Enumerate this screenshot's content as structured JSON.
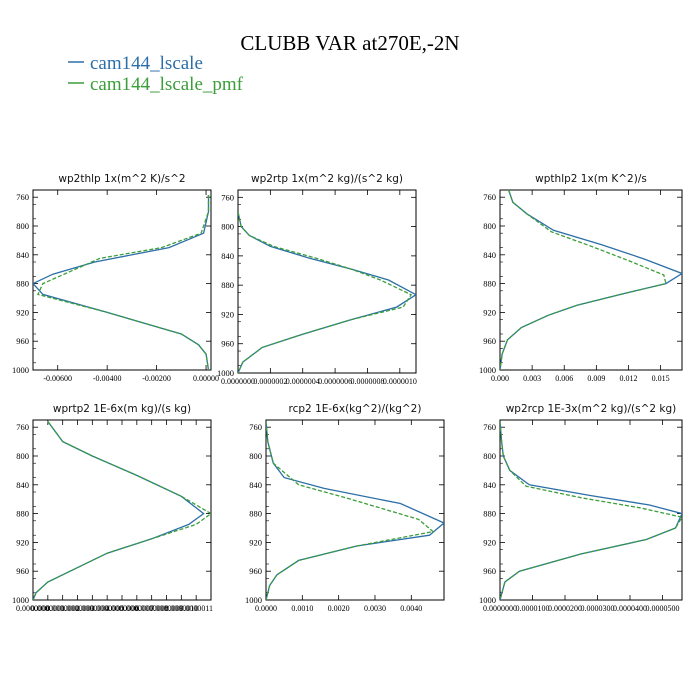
{
  "figure": {
    "title": "CLUBB VAR at270E,-2N",
    "legend": [
      {
        "name": "cam144_lscale",
        "color": "#2c6fa8"
      },
      {
        "name": "cam144_lscale_pmf",
        "color": "#3a9e3a"
      }
    ]
  },
  "chart_data": [
    {
      "type": "line",
      "title": "wp2thlp   1x(m^2 K)/s^2",
      "xlim": [
        -0.007,
        0.0002
      ],
      "ylim": [
        1000,
        750
      ],
      "xticks": [
        -0.006,
        -0.004,
        -0.002,
        0.0
      ],
      "xtick_labels": [
        "-0.00600",
        "-0.00400",
        "-0.00200",
        "0.00000"
      ],
      "yticks": [
        760,
        800,
        840,
        880,
        920,
        960,
        1000
      ],
      "ytick_labels": [
        "760",
        "800",
        "840",
        "880",
        "920",
        "960",
        "1000"
      ],
      "series": [
        {
          "name": "cam144_lscale",
          "color": "#2c6fa8",
          "dashed": false,
          "x": [
            0.0001,
            0.0001,
            -0.0001,
            -0.0015,
            -0.0045,
            -0.0062,
            -0.007,
            -0.0066,
            -0.004,
            -0.0025,
            -0.001,
            -0.0003,
            0.0,
            0.0001
          ],
          "y": [
            757,
            780,
            810,
            830,
            850,
            867,
            880,
            895,
            920,
            935,
            950,
            965,
            978,
            1000
          ]
        },
        {
          "name": "cam144_lscale_pmf",
          "color": "#3a9e3a",
          "dashed": true,
          "x": [
            0.0001,
            0.0001,
            -0.0002,
            -0.0018,
            -0.0043,
            -0.0066,
            -0.0068,
            -0.004,
            -0.0025,
            -0.001,
            -0.0003,
            0.0,
            0.0001
          ],
          "y": [
            757,
            780,
            810,
            830,
            845,
            880,
            895,
            920,
            935,
            950,
            965,
            978,
            1000
          ]
        }
      ]
    },
    {
      "type": "line",
      "title": "wp2rtp   1x(m^2 kg)/(s^2 kg)",
      "xlim": [
        0.0,
        1.1e-06
      ],
      "ylim": [
        1000,
        750
      ],
      "xticks": [
        0.0,
        2e-07,
        4e-07,
        6e-07,
        8e-07,
        1e-06
      ],
      "xtick_labels": [
        "0.0000000",
        "0.0000002",
        "0.0000004",
        "0.0000006",
        "0.0000008",
        "0.0000010"
      ],
      "yticks": [
        760,
        800,
        840,
        880,
        920,
        960,
        1000
      ],
      "ytick_labels": [
        "760",
        "800",
        "840",
        "880",
        "920",
        "960",
        "1000"
      ],
      "series": [
        {
          "name": "cam144_lscale",
          "color": "#2c6fa8",
          "dashed": false,
          "x": [
            0.0,
            2e-08,
            7e-08,
            2e-07,
            4.4e-07,
            7e-07,
            9.3e-07,
            1.1e-06,
            9.8e-07,
            7e-07,
            4e-07,
            1.5e-07,
            3e-08,
            0.0
          ],
          "y": [
            780,
            800,
            812,
            827,
            843,
            858,
            873,
            893,
            910,
            927,
            947,
            965,
            985,
            1000
          ]
        },
        {
          "name": "cam144_lscale_pmf",
          "color": "#3a9e3a",
          "dashed": true,
          "x": [
            0.0,
            2e-08,
            7e-08,
            2.2e-07,
            4.8e-07,
            7e-07,
            8.8e-07,
            1.07e-06,
            1.02e-06,
            7e-07,
            4e-07,
            1.5e-07,
            3e-08,
            0.0
          ],
          "y": [
            780,
            800,
            812,
            827,
            843,
            858,
            873,
            893,
            910,
            927,
            947,
            965,
            985,
            1000
          ]
        }
      ]
    },
    {
      "type": "line",
      "title": "wpthlp2   1x(m K^2)/s",
      "xlim": [
        0.0,
        0.017
      ],
      "ylim": [
        1000,
        750
      ],
      "xticks": [
        0.0,
        0.003,
        0.006,
        0.009,
        0.012,
        0.015
      ],
      "xtick_labels": [
        "0.000",
        "0.003",
        "0.006",
        "0.009",
        "0.012",
        "0.015"
      ],
      "yticks": [
        760,
        800,
        840,
        880,
        920,
        960,
        1000
      ],
      "ytick_labels": [
        "760",
        "800",
        "840",
        "880",
        "920",
        "960",
        "1000"
      ],
      "series": [
        {
          "name": "cam144_lscale",
          "color": "#2c6fa8",
          "dashed": false,
          "x": [
            0.0008,
            0.0012,
            0.0025,
            0.005,
            0.0095,
            0.0135,
            0.017,
            0.0155,
            0.0115,
            0.0072,
            0.0045,
            0.002,
            0.0007,
            0.0002,
            0.0
          ],
          "y": [
            750,
            767,
            783,
            806,
            826,
            846,
            866,
            880,
            894,
            910,
            924,
            941,
            958,
            978,
            1000
          ]
        },
        {
          "name": "cam144_lscale_pmf",
          "color": "#3a9e3a",
          "dashed": true,
          "x": [
            0.0008,
            0.0012,
            0.0025,
            0.0048,
            0.0085,
            0.012,
            0.0153,
            0.0155,
            0.011,
            0.0072,
            0.0045,
            0.002,
            0.0007,
            0.0002,
            0.0
          ],
          "y": [
            750,
            767,
            783,
            808,
            828,
            848,
            868,
            880,
            896,
            910,
            924,
            941,
            958,
            978,
            1000
          ]
        }
      ]
    },
    {
      "type": "line",
      "title": "wprtp2   1E-6x(m kg)/(s kg)",
      "xlim": [
        0.0,
        1.2e-06
      ],
      "ylim": [
        1000,
        750
      ],
      "xticks": [
        0.0,
        1e-07,
        2e-07,
        3e-07,
        4e-07,
        5e-07,
        6e-07,
        7e-07,
        8e-07,
        9e-07,
        1e-06,
        1.1e-06
      ],
      "xtick_labels": [
        "0.0000000",
        "0.0000001",
        "0.0000002",
        "0.0000003",
        "0.0000004",
        "0.0000005",
        "0.0000006",
        "0.0000007",
        "0.0000008",
        "0.0000009",
        "0.0000010",
        "0.0000011"
      ],
      "yticks": [
        760,
        800,
        840,
        880,
        920,
        960,
        1000
      ],
      "ytick_labels": [
        "760",
        "800",
        "840",
        "880",
        "920",
        "960",
        "1000"
      ],
      "series": [
        {
          "name": "cam144_lscale",
          "color": "#2c6fa8",
          "dashed": false,
          "x": [
            1e-07,
            2e-07,
            4e-07,
            7e-07,
            1e-06,
            1.15e-06,
            1.05e-06,
            8e-07,
            5e-07,
            2.5e-07,
            1e-07,
            2e-08,
            0.0
          ],
          "y": [
            752,
            780,
            800,
            827,
            856,
            880,
            895,
            915,
            935,
            960,
            975,
            990,
            1000
          ]
        },
        {
          "name": "cam144_lscale_pmf",
          "color": "#3a9e3a",
          "dashed": true,
          "x": [
            1e-07,
            2e-07,
            4e-07,
            7e-07,
            1e-06,
            1.2e-06,
            1.1e-06,
            8e-07,
            5e-07,
            2.5e-07,
            1e-07,
            2e-08,
            0.0
          ],
          "y": [
            752,
            780,
            800,
            827,
            856,
            880,
            895,
            915,
            935,
            960,
            975,
            990,
            1000
          ]
        }
      ]
    },
    {
      "type": "line",
      "title": "rcp2   1E-6x(kg^2)/(kg^2)",
      "xlim": [
        0.0,
        0.0049
      ],
      "ylim": [
        1000,
        750
      ],
      "xticks": [
        0.0,
        0.001,
        0.002,
        0.003,
        0.004
      ],
      "xtick_labels": [
        "0.0000",
        "0.0010",
        "0.0020",
        "0.0030",
        "0.0040"
      ],
      "yticks": [
        760,
        800,
        840,
        880,
        920,
        960,
        1000
      ],
      "ytick_labels": [
        "760",
        "800",
        "840",
        "880",
        "920",
        "960",
        "1000"
      ],
      "series": [
        {
          "name": "cam144_lscale",
          "color": "#2c6fa8",
          "dashed": false,
          "x": [
            0.0,
            5e-05,
            0.0002,
            0.0005,
            0.0016,
            0.0037,
            0.0049,
            0.0045,
            0.0025,
            0.0009,
            0.0003,
            0.0001,
            0.0
          ],
          "y": [
            752,
            780,
            810,
            830,
            845,
            866,
            893,
            910,
            925,
            945,
            965,
            980,
            1000
          ]
        },
        {
          "name": "cam144_lscale_pmf",
          "color": "#3a9e3a",
          "dashed": true,
          "x": [
            0.0,
            5e-05,
            0.0002,
            0.0009,
            0.0022,
            0.0042,
            0.0046,
            0.0025,
            0.0009,
            0.0003,
            0.0001,
            0.0
          ],
          "y": [
            752,
            780,
            810,
            840,
            858,
            888,
            905,
            925,
            945,
            965,
            980,
            1000
          ]
        }
      ]
    },
    {
      "type": "line",
      "title": "wp2rcp   1E-3x(m^2 kg)/(s^2 kg)",
      "xlim": [
        0.0,
        5.6e-05
      ],
      "ylim": [
        1000,
        750
      ],
      "xticks": [
        0.0,
        1e-05,
        2e-05,
        3e-05,
        4e-05,
        5e-05
      ],
      "xtick_labels": [
        "0.0000000",
        "0.0000100",
        "0.0000200",
        "0.0000300",
        "0.0000400",
        "0.0000500"
      ],
      "yticks": [
        760,
        800,
        840,
        880,
        920,
        960,
        1000
      ],
      "ytick_labels": [
        "760",
        "800",
        "840",
        "880",
        "920",
        "960",
        "1000"
      ],
      "series": [
        {
          "name": "cam144_lscale",
          "color": "#2c6fa8",
          "dashed": false,
          "x": [
            0.0,
            5e-07,
            1e-06,
            3e-06,
            9e-06,
            2.8e-05,
            4.6e-05,
            5.6e-05,
            5.4e-05,
            4.5e-05,
            2.5e-05,
            6e-06,
            1.5e-06,
            0.0
          ],
          "y": [
            752,
            780,
            800,
            820,
            840,
            855,
            868,
            880,
            900,
            916,
            936,
            960,
            975,
            1000
          ]
        },
        {
          "name": "cam144_lscale_pmf",
          "color": "#3a9e3a",
          "dashed": true,
          "x": [
            0.0,
            5e-07,
            1e-06,
            3e-06,
            8e-06,
            2.5e-05,
            4.3e-05,
            5.6e-05,
            5.4e-05,
            4.5e-05,
            2.5e-05,
            6e-06,
            1.5e-06,
            0.0
          ],
          "y": [
            752,
            780,
            800,
            820,
            842,
            858,
            872,
            885,
            900,
            916,
            936,
            960,
            975,
            1000
          ]
        }
      ]
    }
  ]
}
